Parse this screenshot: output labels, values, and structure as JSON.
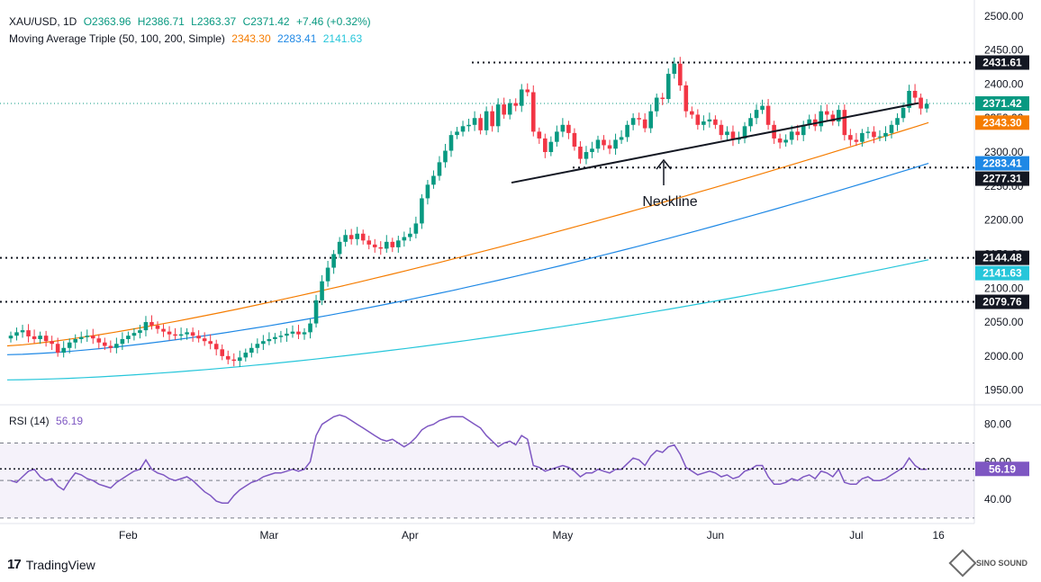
{
  "header": {
    "symbol": "XAU/USD, 1D",
    "open": "O2363.96",
    "high": "H2386.71",
    "low": "L2363.37",
    "close": "C2371.42",
    "change": "+7.46 (+0.32%)",
    "ma_label": "Moving Average Triple (50, 100, 200, Simple)",
    "ma50": "2343.30",
    "ma100": "2283.41",
    "ma200": "2141.63"
  },
  "rsi_header": {
    "label": "RSI (14)",
    "value": "56.19"
  },
  "annotation": {
    "neckline": "Neckline"
  },
  "footer": {
    "brand": "TradingView",
    "watermark": "SINO SOUND"
  },
  "colors": {
    "up": "#089981",
    "down": "#f23645",
    "ma50": "#f57c00",
    "ma100": "#1e88e5",
    "ma200": "#26c6da",
    "rsi": "#7e57c2",
    "level": "#131722"
  },
  "chart_data": [
    {
      "type": "candlestick",
      "title": "XAU/USD, 1D",
      "x_ticks": [
        "Feb",
        "Mar",
        "Apr",
        "May",
        "Jun",
        "Jul",
        "16"
      ],
      "y_ticks": [
        "2500.00",
        "2450.00",
        "2400.00",
        "2350.00",
        "2300.00",
        "2250.00",
        "2200.00",
        "2150.00",
        "2100.00",
        "2050.00",
        "2000.00",
        "1950.00"
      ],
      "ylim": [
        1935,
        2513
      ],
      "price_labels": [
        {
          "text": "2431.61",
          "value": 2431.61,
          "bg": "#131722"
        },
        {
          "text": "2371.42",
          "value": 2371.42,
          "bg": "#089981"
        },
        {
          "text": "2343.30",
          "value": 2343.3,
          "bg": "#f57c00"
        },
        {
          "text": "2283.41",
          "value": 2283.41,
          "bg": "#1e88e5"
        },
        {
          "text": "2277.31",
          "value": 2277.31,
          "bg": "#131722"
        },
        {
          "text": "2144.48",
          "value": 2144.48,
          "bg": "#131722"
        },
        {
          "text": "2141.63",
          "value": 2141.63,
          "bg": "#26c6da"
        },
        {
          "text": "2079.76",
          "value": 2079.76,
          "bg": "#131722"
        }
      ],
      "horizontal_levels": [
        2431.61,
        2277.31,
        2144.48,
        2079.76
      ],
      "last_price": 2371.42,
      "close_series": [
        2030,
        2035,
        2038,
        2029,
        2025,
        2030,
        2022,
        2018,
        2005,
        2012,
        2020,
        2025,
        2028,
        2030,
        2026,
        2020,
        2015,
        2012,
        2018,
        2025,
        2030,
        2034,
        2038,
        2050,
        2045,
        2040,
        2036,
        2032,
        2030,
        2032,
        2035,
        2030,
        2026,
        2022,
        2018,
        2010,
        2000,
        1995,
        1993,
        1998,
        2005,
        2012,
        2018,
        2022,
        2025,
        2028,
        2030,
        2033,
        2036,
        2032,
        2035,
        2048,
        2082,
        2110,
        2130,
        2150,
        2168,
        2178,
        2172,
        2180,
        2170,
        2164,
        2160,
        2158,
        2168,
        2160,
        2170,
        2175,
        2180,
        2195,
        2232,
        2252,
        2265,
        2285,
        2302,
        2325,
        2330,
        2338,
        2340,
        2350,
        2332,
        2360,
        2338,
        2370,
        2355,
        2372,
        2368,
        2392,
        2388,
        2330,
        2320,
        2300,
        2315,
        2330,
        2340,
        2328,
        2308,
        2290,
        2300,
        2305,
        2318,
        2310,
        2305,
        2318,
        2322,
        2340,
        2350,
        2348,
        2335,
        2360,
        2380,
        2378,
        2415,
        2430,
        2398,
        2360,
        2355,
        2340,
        2345,
        2348,
        2340,
        2325,
        2330,
        2318,
        2320,
        2338,
        2350,
        2362,
        2368,
        2340,
        2320,
        2314,
        2318,
        2330,
        2325,
        2340,
        2348,
        2338,
        2360,
        2355,
        2345,
        2362,
        2325,
        2318,
        2315,
        2328,
        2330,
        2322,
        2323,
        2328,
        2340,
        2350,
        2365,
        2390,
        2380,
        2364,
        2371
      ],
      "ma50_ends": [
        2015,
        2343.3
      ],
      "ma100_ends": [
        2002,
        2283.41
      ],
      "ma200_ends": [
        1965,
        2141.63
      ],
      "neckline": [
        2255,
        2372
      ]
    },
    {
      "type": "line",
      "title": "RSI (14)",
      "y_ticks": [
        "80.00",
        "60.00",
        "40.00"
      ],
      "ylim": [
        28,
        88
      ],
      "bands": [
        30,
        50,
        70
      ],
      "last_value": 56.19,
      "values": [
        50,
        49,
        52,
        55,
        56,
        52,
        50,
        51,
        47,
        45,
        50,
        54,
        53,
        51,
        50,
        48,
        47,
        46,
        49,
        51,
        53,
        55,
        56,
        61,
        56,
        54,
        53,
        51,
        50,
        51,
        52,
        50,
        47,
        44,
        42,
        39,
        38,
        38,
        42,
        45,
        47,
        49,
        50,
        52,
        53,
        54,
        54,
        55,
        56,
        55,
        56,
        60,
        74,
        80,
        82,
        84,
        85,
        84,
        82,
        80,
        78,
        76,
        74,
        72,
        71,
        72,
        70,
        68,
        70,
        73,
        77,
        79,
        80,
        82,
        83,
        84,
        84,
        84,
        82,
        80,
        78,
        74,
        71,
        68,
        70,
        71,
        69,
        74,
        72,
        58,
        57,
        55,
        56,
        57,
        58,
        57,
        55,
        52,
        54,
        54,
        56,
        55,
        54,
        56,
        56,
        59,
        62,
        61,
        58,
        63,
        66,
        65,
        68,
        69,
        64,
        57,
        55,
        53,
        54,
        55,
        54,
        52,
        53,
        51,
        52,
        55,
        56,
        58,
        58,
        52,
        48,
        48,
        49,
        51,
        50,
        52,
        53,
        51,
        55,
        54,
        52,
        56,
        49,
        48,
        48,
        51,
        52,
        50,
        50,
        51,
        53,
        55,
        57,
        62,
        58,
        56,
        56
      ]
    }
  ]
}
